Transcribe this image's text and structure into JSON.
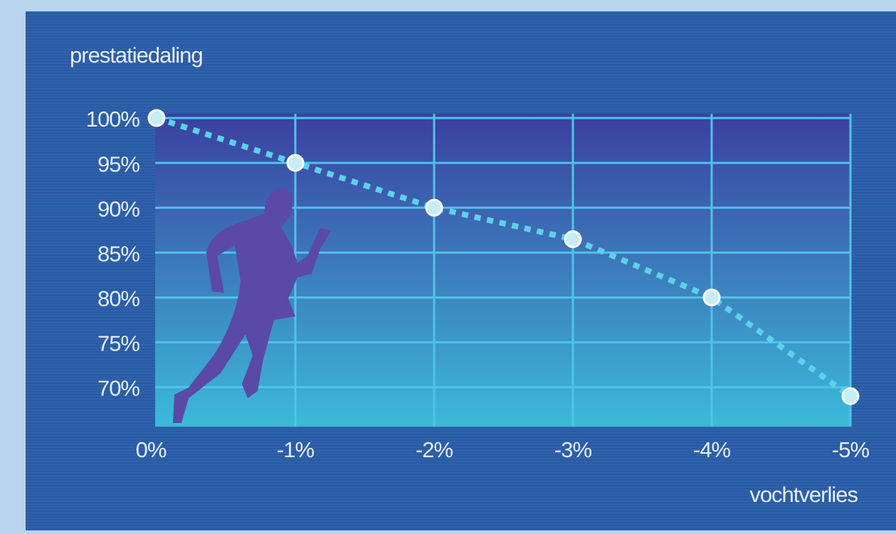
{
  "chart_data": {
    "type": "line",
    "y_label": "prestatiedaling",
    "x_label": "vochtverlies",
    "categories": [
      "0%",
      "-1%",
      "-2%",
      "-3%",
      "-4%",
      "-5%"
    ],
    "values": [
      100,
      95,
      90,
      86.5,
      80,
      69
    ],
    "color": "#5fd0ea",
    "ylim": [
      65.6,
      100
    ],
    "yticks": [
      {
        "value": 100,
        "label": "100%"
      },
      {
        "value": 95,
        "label": "95%"
      },
      {
        "value": 90,
        "label": "90%"
      },
      {
        "value": 85,
        "label": "85%"
      },
      {
        "value": 80,
        "label": "80%"
      },
      {
        "value": 75,
        "label": "75%"
      },
      {
        "value": 70,
        "label": "70%"
      }
    ],
    "grid": true
  }
}
